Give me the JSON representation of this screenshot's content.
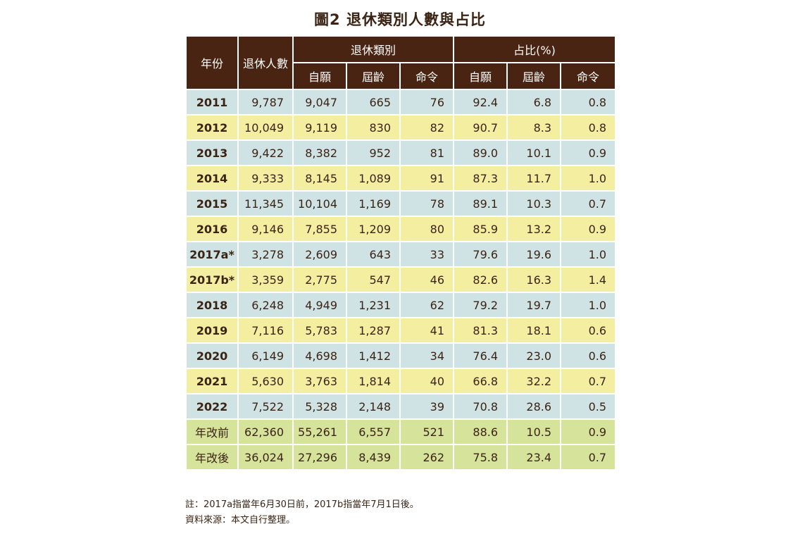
{
  "title": "圖2  退休類別人數與占比",
  "chart_data": {
    "type": "table",
    "title": "圖2  退休類別人數與占比",
    "header": {
      "year": "年份",
      "total": "退休人數",
      "group_type": "退休類別",
      "group_share": "占比(%)",
      "sub": [
        "自願",
        "屆齡",
        "命令",
        "自願",
        "屆齡",
        "命令"
      ]
    },
    "rows": [
      {
        "year": "2011",
        "total": "9,787",
        "vol": "9,047",
        "age": "665",
        "ord": "76",
        "vol_pct": "92.4",
        "age_pct": "6.8",
        "ord_pct": "0.8",
        "style": "blue"
      },
      {
        "year": "2012",
        "total": "10,049",
        "vol": "9,119",
        "age": "830",
        "ord": "82",
        "vol_pct": "90.7",
        "age_pct": "8.3",
        "ord_pct": "0.8",
        "style": "yellow"
      },
      {
        "year": "2013",
        "total": "9,422",
        "vol": "8,382",
        "age": "952",
        "ord": "81",
        "vol_pct": "89.0",
        "age_pct": "10.1",
        "ord_pct": "0.9",
        "style": "blue"
      },
      {
        "year": "2014",
        "total": "9,333",
        "vol": "8,145",
        "age": "1,089",
        "ord": "91",
        "vol_pct": "87.3",
        "age_pct": "11.7",
        "ord_pct": "1.0",
        "style": "yellow"
      },
      {
        "year": "2015",
        "total": "11,345",
        "vol": "10,104",
        "age": "1,169",
        "ord": "78",
        "vol_pct": "89.1",
        "age_pct": "10.3",
        "ord_pct": "0.7",
        "style": "blue"
      },
      {
        "year": "2016",
        "total": "9,146",
        "vol": "7,855",
        "age": "1,209",
        "ord": "80",
        "vol_pct": "85.9",
        "age_pct": "13.2",
        "ord_pct": "0.9",
        "style": "yellow"
      },
      {
        "year": "2017a*",
        "total": "3,278",
        "vol": "2,609",
        "age": "643",
        "ord": "33",
        "vol_pct": "79.6",
        "age_pct": "19.6",
        "ord_pct": "1.0",
        "style": "blue"
      },
      {
        "year": "2017b*",
        "total": "3,359",
        "vol": "2,775",
        "age": "547",
        "ord": "46",
        "vol_pct": "82.6",
        "age_pct": "16.3",
        "ord_pct": "1.4",
        "style": "yellow"
      },
      {
        "year": "2018",
        "total": "6,248",
        "vol": "4,949",
        "age": "1,231",
        "ord": "62",
        "vol_pct": "79.2",
        "age_pct": "19.7",
        "ord_pct": "1.0",
        "style": "blue"
      },
      {
        "year": "2019",
        "total": "7,116",
        "vol": "5,783",
        "age": "1,287",
        "ord": "41",
        "vol_pct": "81.3",
        "age_pct": "18.1",
        "ord_pct": "0.6",
        "style": "yellow"
      },
      {
        "year": "2020",
        "total": "6,149",
        "vol": "4,698",
        "age": "1,412",
        "ord": "34",
        "vol_pct": "76.4",
        "age_pct": "23.0",
        "ord_pct": "0.6",
        "style": "blue"
      },
      {
        "year": "2021",
        "total": "5,630",
        "vol": "3,763",
        "age": "1,814",
        "ord": "40",
        "vol_pct": "66.8",
        "age_pct": "32.2",
        "ord_pct": "0.7",
        "style": "yellow"
      },
      {
        "year": "2022",
        "total": "7,522",
        "vol": "5,328",
        "age": "2,148",
        "ord": "39",
        "vol_pct": "70.8",
        "age_pct": "28.6",
        "ord_pct": "0.5",
        "style": "blue"
      },
      {
        "year": "年改前",
        "total": "62,360",
        "vol": "55,261",
        "age": "6,557",
        "ord": "521",
        "vol_pct": "88.6",
        "age_pct": "10.5",
        "ord_pct": "0.9",
        "style": "green"
      },
      {
        "year": "年改後",
        "total": "36,024",
        "vol": "27,296",
        "age": "8,439",
        "ord": "262",
        "vol_pct": "75.8",
        "age_pct": "23.4",
        "ord_pct": "0.7",
        "style": "green"
      }
    ]
  },
  "notes": [
    "註：2017a指當年6月30日前，2017b指當年7月1日後。",
    "資料來源：本文自行整理。"
  ],
  "colors": {
    "header": "#4a2412",
    "row_blue": "#cfe2e4",
    "row_yellow": "#f3eea0",
    "row_green": "#d6e39a",
    "text": "#3b2414"
  }
}
